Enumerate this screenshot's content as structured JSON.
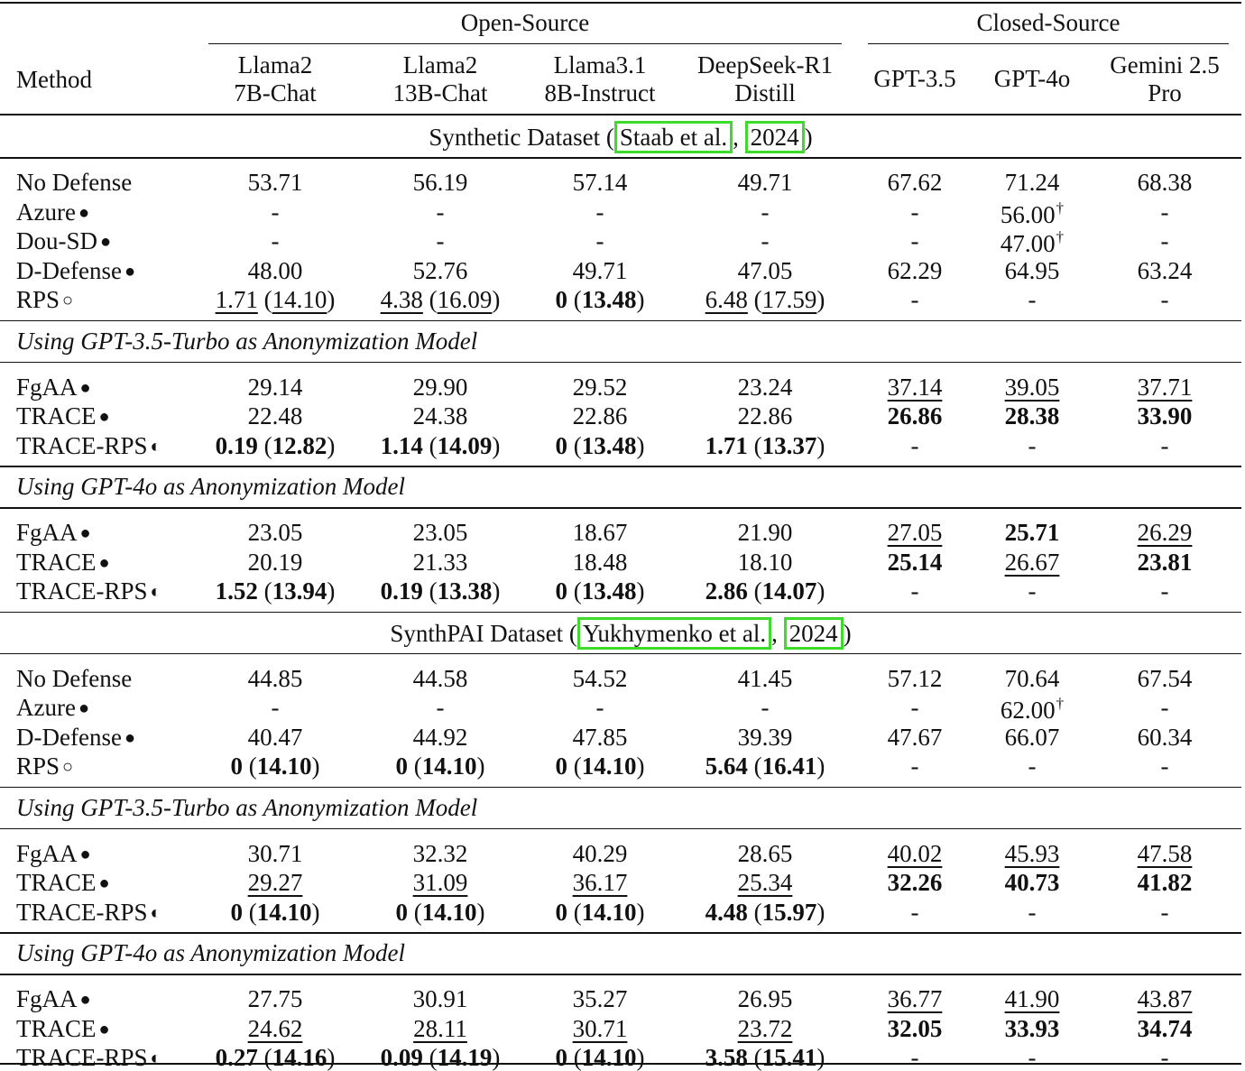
{
  "header": {
    "group_open": "Open-Source",
    "group_closed": "Closed-Source",
    "method": "Method",
    "columns": [
      [
        "Llama2",
        "7B-Chat"
      ],
      [
        "Llama2",
        "13B-Chat"
      ],
      [
        "Llama3.1",
        "8B-Instruct"
      ],
      [
        "DeepSeek-R1",
        "Distill"
      ],
      [
        "GPT-3.5"
      ],
      [
        "GPT-4o"
      ],
      [
        "Gemini 2.5",
        "Pro"
      ]
    ]
  },
  "sections": [
    {
      "type": "dataset",
      "pre": "Synthetic Dataset (",
      "cite_author": "Staab et al.",
      "sep": ",",
      "cite_year": "2024",
      "post": ")"
    },
    {
      "type": "rows",
      "rows": [
        {
          "method": "No Defense",
          "marker": "",
          "cells": [
            [
              "53.71"
            ],
            [
              "56.19"
            ],
            [
              "57.14"
            ],
            [
              "49.71"
            ],
            [
              "67.62"
            ],
            [
              "71.24"
            ],
            [
              "68.38"
            ]
          ]
        },
        {
          "method": "Azure",
          "marker": "●",
          "cells": [
            [
              "-"
            ],
            [
              "-"
            ],
            [
              "-"
            ],
            [
              "-"
            ],
            [
              "-"
            ],
            [
              "56.00",
              "",
              "",
              "†"
            ],
            [
              "-"
            ]
          ]
        },
        {
          "method": "Dou-SD",
          "marker": "●",
          "cells": [
            [
              "-"
            ],
            [
              "-"
            ],
            [
              "-"
            ],
            [
              "-"
            ],
            [
              "-"
            ],
            [
              "47.00",
              "",
              "",
              "†"
            ],
            [
              "-"
            ]
          ]
        },
        {
          "method": "D-Defense",
          "marker": "●",
          "cells": [
            [
              "48.00"
            ],
            [
              "52.76"
            ],
            [
              "49.71"
            ],
            [
              "47.05"
            ],
            [
              "62.29"
            ],
            [
              "64.95"
            ],
            [
              "63.24"
            ]
          ]
        },
        {
          "method": "RPS",
          "marker": "○",
          "cells": [
            [
              "1.71",
              "14.10",
              "u"
            ],
            [
              "4.38",
              "16.09",
              "u"
            ],
            [
              "0",
              "13.48",
              "b"
            ],
            [
              "6.48",
              "17.59",
              "u"
            ],
            [
              "-"
            ],
            [
              "-"
            ],
            [
              "-"
            ]
          ]
        }
      ]
    },
    {
      "type": "subheader",
      "text": "Using GPT-3.5-Turbo as Anonymization Model"
    },
    {
      "type": "rows",
      "rows": [
        {
          "method": "FgAA",
          "marker": "●",
          "cells": [
            [
              "29.14"
            ],
            [
              "29.90"
            ],
            [
              "29.52"
            ],
            [
              "23.24"
            ],
            [
              "37.14",
              "",
              "u"
            ],
            [
              "39.05",
              "",
              "u"
            ],
            [
              "37.71",
              "",
              "u"
            ]
          ]
        },
        {
          "method": "TRACE",
          "marker": "●",
          "cells": [
            [
              "22.48"
            ],
            [
              "24.38"
            ],
            [
              "22.86"
            ],
            [
              "22.86"
            ],
            [
              "26.86",
              "",
              "b"
            ],
            [
              "28.38",
              "",
              "b"
            ],
            [
              "33.90",
              "",
              "b"
            ]
          ]
        },
        {
          "method": "TRACE-RPS",
          "marker": "◐",
          "cells": [
            [
              "0.19",
              "12.82",
              "b"
            ],
            [
              "1.14",
              "14.09",
              "b"
            ],
            [
              "0",
              "13.48",
              "b"
            ],
            [
              "1.71",
              "13.37",
              "b"
            ],
            [
              "-"
            ],
            [
              "-"
            ],
            [
              "-"
            ]
          ]
        }
      ]
    },
    {
      "type": "subheader",
      "text": "Using GPT-4o as Anonymization Model"
    },
    {
      "type": "rows",
      "rows": [
        {
          "method": "FgAA",
          "marker": "●",
          "cells": [
            [
              "23.05"
            ],
            [
              "23.05"
            ],
            [
              "18.67"
            ],
            [
              "21.90"
            ],
            [
              "27.05",
              "",
              "u"
            ],
            [
              "25.71",
              "",
              "b"
            ],
            [
              "26.29",
              "",
              "u"
            ]
          ]
        },
        {
          "method": "TRACE",
          "marker": "●",
          "cells": [
            [
              "20.19"
            ],
            [
              "21.33"
            ],
            [
              "18.48"
            ],
            [
              "18.10"
            ],
            [
              "25.14",
              "",
              "b"
            ],
            [
              "26.67",
              "",
              "u"
            ],
            [
              "23.81",
              "",
              "b"
            ]
          ]
        },
        {
          "method": "TRACE-RPS",
          "marker": "◐",
          "cells": [
            [
              "1.52",
              "13.94",
              "b"
            ],
            [
              "0.19",
              "13.38",
              "b"
            ],
            [
              "0",
              "13.48",
              "b"
            ],
            [
              "2.86",
              "14.07",
              "b"
            ],
            [
              "-"
            ],
            [
              "-"
            ],
            [
              "-"
            ]
          ]
        }
      ]
    },
    {
      "type": "dataset",
      "pre": "SynthPAI Dataset (",
      "cite_author": "Yukhymenko et al.",
      "sep": ",",
      "cite_year": "2024",
      "post": ")"
    },
    {
      "type": "rows",
      "rows": [
        {
          "method": "No Defense",
          "marker": "",
          "cells": [
            [
              "44.85"
            ],
            [
              "44.58"
            ],
            [
              "54.52"
            ],
            [
              "41.45"
            ],
            [
              "57.12"
            ],
            [
              "70.64"
            ],
            [
              "67.54"
            ]
          ]
        },
        {
          "method": "Azure",
          "marker": "●",
          "cells": [
            [
              "-"
            ],
            [
              "-"
            ],
            [
              "-"
            ],
            [
              "-"
            ],
            [
              "-"
            ],
            [
              "62.00",
              "",
              "",
              "†"
            ],
            [
              "-"
            ]
          ]
        },
        {
          "method": "D-Defense",
          "marker": "●",
          "cells": [
            [
              "40.47"
            ],
            [
              "44.92"
            ],
            [
              "47.85"
            ],
            [
              "39.39"
            ],
            [
              "47.67"
            ],
            [
              "66.07"
            ],
            [
              "60.34"
            ]
          ]
        },
        {
          "method": "RPS",
          "marker": "○",
          "cells": [
            [
              "0",
              "14.10",
              "b"
            ],
            [
              "0",
              "14.10",
              "b"
            ],
            [
              "0",
              "14.10",
              "b"
            ],
            [
              "5.64",
              "16.41",
              "b"
            ],
            [
              "-"
            ],
            [
              "-"
            ],
            [
              "-"
            ]
          ]
        }
      ]
    },
    {
      "type": "subheader",
      "text": "Using GPT-3.5-Turbo as Anonymization Model"
    },
    {
      "type": "rows",
      "rows": [
        {
          "method": "FgAA",
          "marker": "●",
          "cells": [
            [
              "30.71"
            ],
            [
              "32.32"
            ],
            [
              "40.29"
            ],
            [
              "28.65"
            ],
            [
              "40.02",
              "",
              "u"
            ],
            [
              "45.93",
              "",
              "u"
            ],
            [
              "47.58",
              "",
              "u"
            ]
          ]
        },
        {
          "method": "TRACE",
          "marker": "●",
          "cells": [
            [
              "29.27",
              "",
              "u"
            ],
            [
              "31.09",
              "",
              "u"
            ],
            [
              "36.17",
              "",
              "u"
            ],
            [
              "25.34",
              "",
              "u"
            ],
            [
              "32.26",
              "",
              "b"
            ],
            [
              "40.73",
              "",
              "b"
            ],
            [
              "41.82",
              "",
              "b"
            ]
          ]
        },
        {
          "method": "TRACE-RPS",
          "marker": "◐",
          "cells": [
            [
              "0",
              "14.10",
              "b"
            ],
            [
              "0",
              "14.10",
              "b"
            ],
            [
              "0",
              "14.10",
              "b"
            ],
            [
              "4.48",
              "15.97",
              "b"
            ],
            [
              "-"
            ],
            [
              "-"
            ],
            [
              "-"
            ]
          ]
        }
      ]
    },
    {
      "type": "subheader",
      "text": "Using GPT-4o as Anonymization Model"
    },
    {
      "type": "rows",
      "rows": [
        {
          "method": "FgAA",
          "marker": "●",
          "cells": [
            [
              "27.75"
            ],
            [
              "30.91"
            ],
            [
              "35.27"
            ],
            [
              "26.95"
            ],
            [
              "36.77",
              "",
              "u"
            ],
            [
              "41.90",
              "",
              "u"
            ],
            [
              "43.87",
              "",
              "u"
            ]
          ]
        },
        {
          "method": "TRACE",
          "marker": "●",
          "cells": [
            [
              "24.62",
              "",
              "u"
            ],
            [
              "28.11",
              "",
              "u"
            ],
            [
              "30.71",
              "",
              "u"
            ],
            [
              "23.72",
              "",
              "u"
            ],
            [
              "32.05",
              "",
              "b"
            ],
            [
              "33.93",
              "",
              "b"
            ],
            [
              "34.74",
              "",
              "b"
            ]
          ]
        },
        {
          "method": "TRACE-RPS",
          "marker": "◐",
          "cells": [
            [
              "0.27",
              "14.16",
              "b"
            ],
            [
              "0.09",
              "14.19",
              "b"
            ],
            [
              "0",
              "14.10",
              "b"
            ],
            [
              "3.58",
              "15.41",
              "b"
            ],
            [
              "-"
            ],
            [
              "-"
            ],
            [
              "-"
            ]
          ]
        }
      ]
    }
  ]
}
